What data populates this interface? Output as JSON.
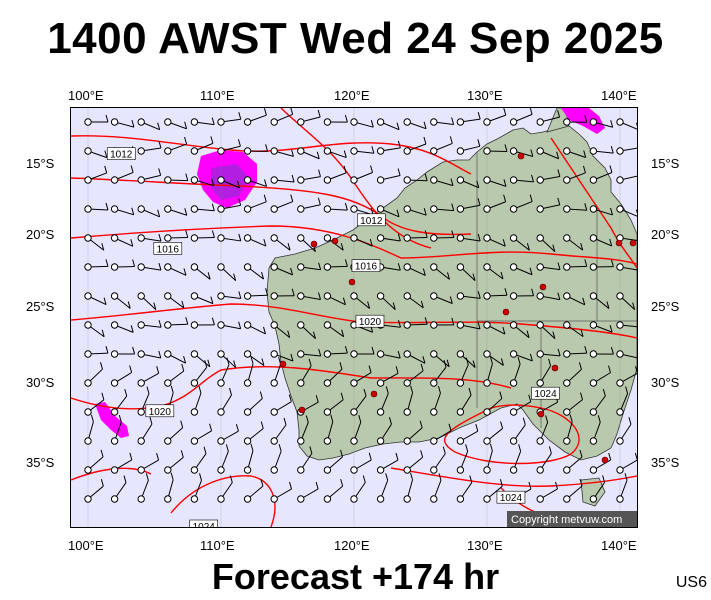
{
  "title": "1400 AWST Wed 24 Sep 2025",
  "subtitle": "Forecast +174 hr",
  "region_code": "US6",
  "copyright": "Copyright metvuw.com",
  "axes": {
    "lon_labels": [
      "100°E",
      "110°E",
      "120°E",
      "130°E",
      "140°E"
    ],
    "lat_labels": [
      "15°S",
      "20°S",
      "25°S",
      "30°S",
      "35°S"
    ]
  },
  "isobar_labels": [
    {
      "text": "1012",
      "lon": 102.5,
      "lat": -14.5
    },
    {
      "text": "1012",
      "lon": 121.3,
      "lat": -19.0
    },
    {
      "text": "1016",
      "lon": 106.0,
      "lat": -21.0
    },
    {
      "text": "1016",
      "lon": 120.9,
      "lat": -22.2
    },
    {
      "text": "1020",
      "lon": 121.2,
      "lat": -26.0
    },
    {
      "text": "1020",
      "lon": 105.4,
      "lat": -31.8
    },
    {
      "text": "1024",
      "lon": 134.4,
      "lat": -30.7
    },
    {
      "text": "1024",
      "lon": 131.8,
      "lat": -37.2
    },
    {
      "text": "1024",
      "lon": 108.7,
      "lat": -39.3
    }
  ],
  "colors": {
    "ocean": "#e6e6ff",
    "land": "#b9c9ad",
    "isobar": "#ff0000",
    "precip": "#ff00ff",
    "precip_heavy": "#b21fe0",
    "wind": "#000000"
  }
}
